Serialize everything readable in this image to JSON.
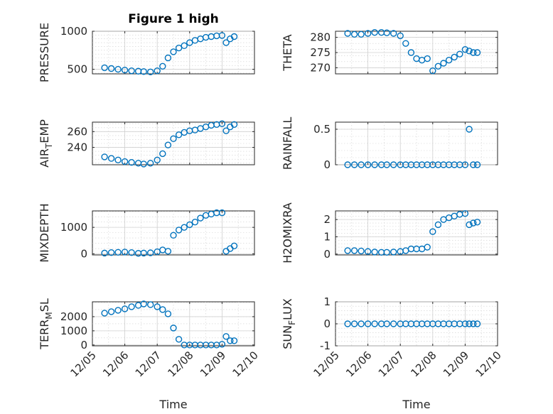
{
  "chart_data": [
    {
      "id": "pressure",
      "type": "scatter",
      "title": "Figure 1 high",
      "ylabel": "PRESSURE",
      "ylim": [
        440,
        1000
      ],
      "yticks": [
        500,
        1000
      ],
      "yticklabels": [
        "500",
        "1000"
      ],
      "xlim": [
        "12/05",
        "12/10"
      ],
      "xticklabels": [],
      "xlabel": "",
      "grid": true,
      "color": "#0072BD",
      "x": [
        "12/05 09:00",
        "12/05 14:00",
        "12/05 19:00",
        "12/06 00:00",
        "12/06 05:00",
        "12/06 10:00",
        "12/06 14:00",
        "12/06 19:00",
        "12/07 00:00",
        "12/07 04:00",
        "12/07 08:00",
        "12/07 12:00",
        "12/07 16:00",
        "12/07 20:00",
        "12/08 00:00",
        "12/08 04:00",
        "12/08 08:00",
        "12/08 12:00",
        "12/08 16:00",
        "12/08 20:00",
        "12/09 00:00",
        "12/09 03:00",
        "12/09 06:00",
        "12/09 09:00"
      ],
      "y": [
        520,
        510,
        500,
        490,
        480,
        475,
        470,
        465,
        480,
        540,
        650,
        730,
        780,
        810,
        850,
        880,
        900,
        920,
        930,
        940,
        945,
        850,
        900,
        930
      ]
    },
    {
      "id": "theta",
      "type": "scatter",
      "title": "",
      "ylabel": "THETA",
      "ylim": [
        268,
        282
      ],
      "yticks": [
        270,
        275,
        280
      ],
      "yticklabels": [
        "270",
        "275",
        "280"
      ],
      "xlim": [
        "12/05",
        "12/10"
      ],
      "xticklabels": [],
      "xlabel": "",
      "grid": true,
      "color": "#0072BD",
      "x": [
        "12/05 09:00",
        "12/05 14:00",
        "12/05 19:00",
        "12/06 00:00",
        "12/06 05:00",
        "12/06 10:00",
        "12/06 14:00",
        "12/06 19:00",
        "12/07 00:00",
        "12/07 04:00",
        "12/07 08:00",
        "12/07 12:00",
        "12/07 16:00",
        "12/07 20:00",
        "12/08 00:00",
        "12/08 04:00",
        "12/08 08:00",
        "12/08 12:00",
        "12/08 16:00",
        "12/08 20:00",
        "12/09 00:00",
        "12/09 03:00",
        "12/09 06:00",
        "12/09 09:00"
      ],
      "y": [
        281.3,
        281.0,
        281.0,
        281.3,
        281.6,
        281.6,
        281.5,
        281.3,
        280.5,
        278.0,
        275.0,
        273.0,
        272.5,
        273.0,
        269.0,
        270.5,
        271.5,
        272.5,
        273.5,
        274.5,
        276.0,
        275.5,
        275.0,
        275.0
      ]
    },
    {
      "id": "air_temp",
      "type": "scatter",
      "title": "",
      "ylabel": "AIR_TEMP",
      "ylabel_display": {
        "base": "AIR",
        "sub": "T",
        "rest": "EMP"
      },
      "ylim": [
        218,
        272
      ],
      "yticks": [
        240,
        260
      ],
      "yticklabels": [
        "240",
        "260"
      ],
      "xlim": [
        "12/05",
        "12/10"
      ],
      "xticklabels": [],
      "xlabel": "",
      "grid": true,
      "color": "#0072BD",
      "x": [
        "12/05 09:00",
        "12/05 14:00",
        "12/05 19:00",
        "12/06 00:00",
        "12/06 05:00",
        "12/06 10:00",
        "12/06 14:00",
        "12/06 19:00",
        "12/07 00:00",
        "12/07 04:00",
        "12/07 08:00",
        "12/07 12:00",
        "12/07 16:00",
        "12/07 20:00",
        "12/08 00:00",
        "12/08 04:00",
        "12/08 08:00",
        "12/08 12:00",
        "12/08 16:00",
        "12/08 20:00",
        "12/09 00:00",
        "12/09 03:00",
        "12/09 06:00",
        "12/09 09:00"
      ],
      "y": [
        228,
        226,
        224,
        222,
        221,
        220,
        219,
        220,
        224,
        232,
        243,
        251,
        256,
        259,
        261,
        262,
        264,
        266,
        268,
        269,
        270,
        261,
        266,
        269
      ]
    },
    {
      "id": "rainfall",
      "type": "scatter",
      "title": "",
      "ylabel": "RAINFALL",
      "ylim": [
        0,
        0.6
      ],
      "yticks": [
        0,
        0.5
      ],
      "yticklabels": [
        "0",
        "0.5"
      ],
      "xlim": [
        "12/05",
        "12/10"
      ],
      "xticklabels": [],
      "xlabel": "",
      "grid": true,
      "color": "#0072BD",
      "x": [
        "12/05 09:00",
        "12/05 14:00",
        "12/05 19:00",
        "12/06 00:00",
        "12/06 05:00",
        "12/06 10:00",
        "12/06 14:00",
        "12/06 19:00",
        "12/07 00:00",
        "12/07 04:00",
        "12/07 08:00",
        "12/07 12:00",
        "12/07 16:00",
        "12/07 20:00",
        "12/08 00:00",
        "12/08 04:00",
        "12/08 08:00",
        "12/08 12:00",
        "12/08 16:00",
        "12/08 20:00",
        "12/09 00:00",
        "12/09 03:00",
        "12/09 06:00",
        "12/09 09:00"
      ],
      "y": [
        0,
        0,
        0,
        0,
        0,
        0,
        0,
        0,
        0,
        0,
        0,
        0,
        0,
        0,
        0,
        0,
        0,
        0,
        0,
        0,
        0,
        0.5,
        0,
        0
      ]
    },
    {
      "id": "mixdepth",
      "type": "scatter",
      "title": "",
      "ylabel": "MIXDEPTH",
      "ylim": [
        -40,
        1620
      ],
      "yticks": [
        0,
        1000
      ],
      "yticklabels": [
        "0",
        "1000"
      ],
      "xlim": [
        "12/05",
        "12/10"
      ],
      "xticklabels": [],
      "xlabel": "",
      "grid": true,
      "color": "#0072BD",
      "x": [
        "12/05 09:00",
        "12/05 14:00",
        "12/05 19:00",
        "12/06 00:00",
        "12/06 05:00",
        "12/06 10:00",
        "12/06 14:00",
        "12/06 19:00",
        "12/07 00:00",
        "12/07 04:00",
        "12/07 08:00",
        "12/07 12:00",
        "12/07 16:00",
        "12/07 20:00",
        "12/08 00:00",
        "12/08 04:00",
        "12/08 08:00",
        "12/08 12:00",
        "12/08 16:00",
        "12/08 20:00",
        "12/09 00:00",
        "12/09 03:00",
        "12/09 06:00",
        "12/09 09:00"
      ],
      "y": [
        30,
        50,
        60,
        70,
        50,
        20,
        30,
        40,
        80,
        150,
        100,
        700,
        900,
        1000,
        1100,
        1200,
        1350,
        1450,
        1500,
        1550,
        1550,
        100,
        200,
        300
      ]
    },
    {
      "id": "h2omixra",
      "type": "scatter",
      "title": "",
      "ylabel": "H2OMIXRA",
      "ylim": [
        -0.05,
        2.5
      ],
      "yticks": [
        0,
        1,
        2
      ],
      "yticklabels": [
        "0",
        "1",
        "2"
      ],
      "xlim": [
        "12/05",
        "12/10"
      ],
      "xticklabels": [],
      "xlabel": "",
      "grid": true,
      "color": "#0072BD",
      "x": [
        "12/05 09:00",
        "12/05 14:00",
        "12/05 19:00",
        "12/06 00:00",
        "12/06 05:00",
        "12/06 10:00",
        "12/06 14:00",
        "12/06 19:00",
        "12/07 00:00",
        "12/07 04:00",
        "12/07 08:00",
        "12/07 12:00",
        "12/07 16:00",
        "12/07 20:00",
        "12/08 00:00",
        "12/08 04:00",
        "12/08 08:00",
        "12/08 12:00",
        "12/08 16:00",
        "12/08 20:00",
        "12/09 00:00",
        "12/09 03:00",
        "12/09 06:00",
        "12/09 09:00"
      ],
      "y": [
        0.2,
        0.2,
        0.18,
        0.15,
        0.12,
        0.1,
        0.1,
        0.12,
        0.15,
        0.2,
        0.3,
        0.3,
        0.3,
        0.4,
        1.3,
        1.7,
        2.0,
        2.1,
        2.2,
        2.3,
        2.35,
        1.7,
        1.8,
        1.85
      ]
    },
    {
      "id": "terr_msl",
      "type": "scatter",
      "title": "",
      "ylabel": "TERR_MSL",
      "ylabel_display": {
        "base": "TERR",
        "sub": "M",
        "rest": "SL"
      },
      "ylim": [
        -60,
        3050
      ],
      "yticks": [
        0,
        1000,
        2000
      ],
      "yticklabels": [
        "0",
        "1000",
        "2000"
      ],
      "xlim": [
        "12/05",
        "12/10"
      ],
      "xticklabels": [
        "12/05",
        "12/06",
        "12/07",
        "12/08",
        "12/09",
        "12/10"
      ],
      "xlabel": "Time",
      "grid": true,
      "color": "#0072BD",
      "x": [
        "12/05 09:00",
        "12/05 14:00",
        "12/05 19:00",
        "12/06 00:00",
        "12/06 05:00",
        "12/06 10:00",
        "12/06 14:00",
        "12/06 19:00",
        "12/07 00:00",
        "12/07 04:00",
        "12/07 08:00",
        "12/07 12:00",
        "12/07 16:00",
        "12/07 20:00",
        "12/08 00:00",
        "12/08 04:00",
        "12/08 08:00",
        "12/08 12:00",
        "12/08 16:00",
        "12/08 20:00",
        "12/09 00:00",
        "12/09 03:00",
        "12/09 06:00",
        "12/09 09:00"
      ],
      "y": [
        2250,
        2350,
        2450,
        2550,
        2700,
        2800,
        2900,
        2850,
        2700,
        2500,
        2200,
        1200,
        400,
        0,
        0,
        0,
        0,
        0,
        0,
        0,
        50,
        600,
        300,
        300
      ]
    },
    {
      "id": "sun_flux",
      "type": "scatter",
      "title": "",
      "ylabel": "SUN_FLUX",
      "ylabel_display": {
        "base": "SUN",
        "sub": "F",
        "rest": "LUX"
      },
      "ylim": [
        -1,
        1
      ],
      "yticks": [
        -1,
        0,
        1
      ],
      "yticklabels": [
        "-1",
        "0",
        "1"
      ],
      "xlim": [
        "12/05",
        "12/10"
      ],
      "xticklabels": [
        "12/05",
        "12/06",
        "12/07",
        "12/08",
        "12/09",
        "12/10"
      ],
      "xlabel": "Time",
      "grid": true,
      "color": "#0072BD",
      "x": [
        "12/05 09:00",
        "12/05 14:00",
        "12/05 19:00",
        "12/06 00:00",
        "12/06 05:00",
        "12/06 10:00",
        "12/06 14:00",
        "12/06 19:00",
        "12/07 00:00",
        "12/07 04:00",
        "12/07 08:00",
        "12/07 12:00",
        "12/07 16:00",
        "12/07 20:00",
        "12/08 00:00",
        "12/08 04:00",
        "12/08 08:00",
        "12/08 12:00",
        "12/08 16:00",
        "12/08 20:00",
        "12/09 00:00",
        "12/09 03:00",
        "12/09 06:00",
        "12/09 09:00"
      ],
      "y": [
        0,
        0,
        0,
        0,
        0,
        0,
        0,
        0,
        0,
        0,
        0,
        0,
        0,
        0,
        0,
        0,
        0,
        0,
        0,
        0,
        0,
        0,
        0,
        0
      ]
    }
  ]
}
